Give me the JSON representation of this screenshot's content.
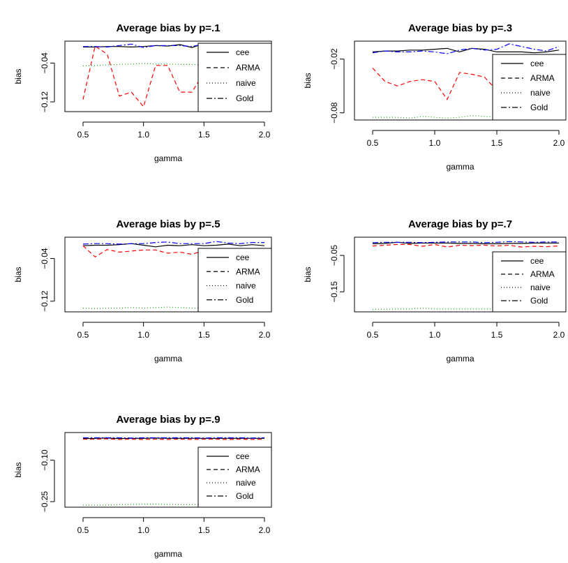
{
  "chart_data": [
    {
      "type": "line",
      "title": "Average bias by p=.1",
      "xlabel": "gamma",
      "ylabel": "bias",
      "xlim": [
        0.5,
        2.0
      ],
      "ylim": [
        -0.14,
        0.005
      ],
      "xticks": [
        0.5,
        1.0,
        1.5,
        2.0
      ],
      "xtick_labels": [
        "0.5",
        "1.0",
        "1.5",
        "2.0"
      ],
      "yticks": [
        -0.04,
        -0.12
      ],
      "ytick_labels": [
        "−0.04",
        "−0.12"
      ],
      "legend_position": "right",
      "x": [
        0.5,
        0.6,
        0.7,
        0.8,
        0.9,
        1.0,
        1.1,
        1.2,
        1.3,
        1.4,
        1.5,
        1.6,
        1.7,
        1.8,
        1.9,
        2.0
      ],
      "series": [
        {
          "name": "cee",
          "color": "#000000",
          "dash": "solid",
          "values": [
            -0.007,
            -0.007,
            -0.006,
            -0.006,
            -0.007,
            -0.006,
            -0.004,
            -0.005,
            -0.002,
            -0.008,
            0.0,
            -0.004,
            -0.003,
            -0.005,
            -0.008,
            -0.005
          ]
        },
        {
          "name": "ARMA",
          "color": "#ff0000",
          "dash": "dashed",
          "values": [
            -0.115,
            -0.005,
            -0.022,
            -0.108,
            -0.1,
            -0.13,
            -0.045,
            -0.045,
            -0.1,
            -0.1,
            -0.06,
            -0.06,
            -0.09,
            -0.07,
            -0.065,
            -0.042
          ]
        },
        {
          "name": "naive",
          "color": "#00aa00",
          "dash": "dotted",
          "values": [
            -0.046,
            -0.045,
            -0.044,
            -0.043,
            -0.042,
            -0.041,
            -0.042,
            -0.042,
            -0.043,
            -0.043,
            -0.044,
            -0.043,
            -0.042,
            -0.042,
            -0.042,
            -0.041
          ]
        },
        {
          "name": "Gold",
          "color": "#0000ff",
          "dash": "dashdot",
          "values": [
            -0.006,
            -0.006,
            -0.007,
            -0.004,
            -0.001,
            -0.008,
            -0.004,
            -0.004,
            -0.004,
            -0.006,
            -0.001,
            -0.003,
            -0.005,
            -0.004,
            -0.006,
            -0.004
          ]
        }
      ]
    },
    {
      "type": "line",
      "title": "Average bias by p=.3",
      "xlabel": "gamma",
      "ylabel": "bias",
      "xlim": [
        0.5,
        2.0
      ],
      "ylim": [
        -0.088,
        0.0
      ],
      "xticks": [
        0.5,
        1.0,
        1.5,
        2.0
      ],
      "xtick_labels": [
        "0.5",
        "1.0",
        "1.5",
        "2.0"
      ],
      "yticks": [
        -0.02,
        -0.08
      ],
      "ytick_labels": [
        "−0.02",
        "−0.08"
      ],
      "legend_position": "right",
      "x": [
        0.5,
        0.6,
        0.7,
        0.8,
        0.9,
        1.0,
        1.1,
        1.2,
        1.3,
        1.4,
        1.5,
        1.6,
        1.7,
        1.8,
        1.9,
        2.0
      ],
      "series": [
        {
          "name": "cee",
          "color": "#000000",
          "dash": "solid",
          "values": [
            -0.012,
            -0.011,
            -0.011,
            -0.01,
            -0.01,
            -0.009,
            -0.008,
            -0.012,
            -0.008,
            -0.009,
            -0.012,
            -0.012,
            -0.012,
            -0.013,
            -0.012,
            -0.01
          ]
        },
        {
          "name": "ARMA",
          "color": "#ff0000",
          "dash": "dashed",
          "values": [
            -0.03,
            -0.045,
            -0.05,
            -0.045,
            -0.043,
            -0.045,
            -0.065,
            -0.035,
            -0.037,
            -0.04,
            -0.055,
            -0.057,
            -0.085,
            -0.04,
            -0.035,
            -0.032
          ]
        },
        {
          "name": "naive",
          "color": "#00aa00",
          "dash": "dotted",
          "values": [
            -0.085,
            -0.085,
            -0.085,
            -0.086,
            -0.084,
            -0.085,
            -0.086,
            -0.085,
            -0.083,
            -0.084,
            -0.085,
            -0.085,
            -0.084,
            -0.085,
            -0.085,
            -0.084
          ]
        },
        {
          "name": "Gold",
          "color": "#0000ff",
          "dash": "dashdot",
          "values": [
            -0.013,
            -0.011,
            -0.012,
            -0.012,
            -0.011,
            -0.012,
            -0.014,
            -0.01,
            -0.008,
            -0.01,
            -0.009,
            -0.003,
            -0.006,
            -0.009,
            -0.011,
            -0.006
          ]
        }
      ]
    },
    {
      "type": "line",
      "title": "Average bias by p=.5",
      "xlabel": "gamma",
      "ylabel": "bias",
      "xlim": [
        0.5,
        2.0
      ],
      "ylim": [
        -0.14,
        0.0
      ],
      "xticks": [
        0.5,
        1.0,
        1.5,
        2.0
      ],
      "xtick_labels": [
        "0.5",
        "1.0",
        "1.5",
        "2.0"
      ],
      "yticks": [
        -0.04,
        -0.12
      ],
      "ytick_labels": [
        "−0.04",
        "−0.12"
      ],
      "legend_position": "right",
      "x": [
        0.5,
        0.6,
        0.7,
        0.8,
        0.9,
        1.0,
        1.1,
        1.2,
        1.3,
        1.4,
        1.5,
        1.6,
        1.7,
        1.8,
        1.9,
        2.0
      ],
      "series": [
        {
          "name": "cee",
          "color": "#000000",
          "dash": "solid",
          "values": [
            -0.016,
            -0.015,
            -0.015,
            -0.014,
            -0.012,
            -0.015,
            -0.018,
            -0.015,
            -0.016,
            -0.014,
            -0.016,
            -0.015,
            -0.013,
            -0.016,
            -0.014,
            -0.016
          ]
        },
        {
          "name": "ARMA",
          "color": "#ff0000",
          "dash": "dashed",
          "values": [
            -0.016,
            -0.037,
            -0.023,
            -0.028,
            -0.026,
            -0.024,
            -0.024,
            -0.03,
            -0.028,
            -0.032,
            -0.025,
            -0.024,
            -0.05,
            -0.022,
            -0.025,
            -0.028
          ]
        },
        {
          "name": "naive",
          "color": "#00aa00",
          "dash": "dotted",
          "values": [
            -0.133,
            -0.134,
            -0.133,
            -0.133,
            -0.132,
            -0.133,
            -0.132,
            -0.131,
            -0.132,
            -0.133,
            -0.133,
            -0.132,
            -0.132,
            -0.132,
            -0.132,
            -0.131
          ]
        },
        {
          "name": "Gold",
          "color": "#0000ff",
          "dash": "dashdot",
          "values": [
            -0.013,
            -0.012,
            -0.012,
            -0.013,
            -0.012,
            -0.012,
            -0.01,
            -0.009,
            -0.012,
            -0.012,
            -0.012,
            -0.008,
            -0.011,
            -0.012,
            -0.01,
            -0.01
          ]
        }
      ]
    },
    {
      "type": "line",
      "title": "Average bias by p=.7",
      "xlabel": "gamma",
      "ylabel": "bias",
      "xlim": [
        0.5,
        2.0
      ],
      "ylim": [
        -0.205,
        0.0
      ],
      "xticks": [
        0.5,
        1.0,
        1.5,
        2.0
      ],
      "xtick_labels": [
        "0.5",
        "1.0",
        "1.5",
        "2.0"
      ],
      "yticks": [
        -0.05,
        -0.15
      ],
      "ytick_labels": [
        "−0.05",
        "−0.15"
      ],
      "legend_position": "right",
      "x": [
        0.5,
        0.6,
        0.7,
        0.8,
        0.9,
        1.0,
        1.1,
        1.2,
        1.3,
        1.4,
        1.5,
        1.6,
        1.7,
        1.8,
        1.9,
        2.0
      ],
      "series": [
        {
          "name": "cee",
          "color": "#000000",
          "dash": "solid",
          "values": [
            -0.018,
            -0.017,
            -0.014,
            -0.017,
            -0.016,
            -0.016,
            -0.016,
            -0.017,
            -0.017,
            -0.018,
            -0.018,
            -0.017,
            -0.017,
            -0.016,
            -0.016,
            -0.016
          ]
        },
        {
          "name": "ARMA",
          "color": "#ff0000",
          "dash": "dashed",
          "values": [
            -0.024,
            -0.022,
            -0.02,
            -0.02,
            -0.025,
            -0.02,
            -0.027,
            -0.022,
            -0.023,
            -0.022,
            -0.024,
            -0.022,
            -0.027,
            -0.025,
            -0.026,
            -0.024
          ]
        },
        {
          "name": "naive",
          "color": "#00aa00",
          "dash": "dotted",
          "values": [
            -0.198,
            -0.198,
            -0.197,
            -0.197,
            -0.195,
            -0.197,
            -0.197,
            -0.197,
            -0.197,
            -0.197,
            -0.197,
            -0.198,
            -0.198,
            -0.198,
            -0.198,
            -0.197
          ]
        },
        {
          "name": "Gold",
          "color": "#0000ff",
          "dash": "dashdot",
          "values": [
            -0.015,
            -0.014,
            -0.014,
            -0.014,
            -0.015,
            -0.014,
            -0.013,
            -0.013,
            -0.013,
            -0.015,
            -0.014,
            -0.012,
            -0.013,
            -0.014,
            -0.013,
            -0.013
          ]
        }
      ]
    },
    {
      "type": "line",
      "title": "Average bias by p=.9",
      "xlabel": "gamma",
      "ylabel": "bias",
      "xlim": [
        0.5,
        2.0
      ],
      "ylim": [
        -0.27,
        0.0
      ],
      "xticks": [
        0.5,
        1.0,
        1.5,
        2.0
      ],
      "xtick_labels": [
        "0.5",
        "1.0",
        "1.5",
        "2.0"
      ],
      "yticks": [
        -0.1,
        -0.25
      ],
      "ytick_labels": [
        "−0.10",
        "−0.25"
      ],
      "legend_position": "right",
      "x": [
        0.5,
        0.6,
        0.7,
        0.8,
        0.9,
        1.0,
        1.1,
        1.2,
        1.3,
        1.4,
        1.5,
        1.6,
        1.7,
        1.8,
        1.9,
        2.0
      ],
      "series": [
        {
          "name": "cee",
          "color": "#000000",
          "dash": "solid",
          "values": [
            -0.022,
            -0.021,
            -0.02,
            -0.022,
            -0.021,
            -0.021,
            -0.02,
            -0.021,
            -0.021,
            -0.021,
            -0.021,
            -0.021,
            -0.021,
            -0.021,
            -0.021,
            -0.021
          ]
        },
        {
          "name": "ARMA",
          "color": "#ff0000",
          "dash": "dashed",
          "values": [
            -0.024,
            -0.024,
            -0.023,
            -0.025,
            -0.024,
            -0.025,
            -0.024,
            -0.025,
            -0.024,
            -0.025,
            -0.024,
            -0.024,
            -0.025,
            -0.024,
            -0.025,
            -0.024
          ]
        },
        {
          "name": "naive",
          "color": "#00aa00",
          "dash": "dotted",
          "values": [
            -0.262,
            -0.263,
            -0.262,
            -0.261,
            -0.26,
            -0.259,
            -0.259,
            -0.26,
            -0.261,
            -0.261,
            -0.26,
            -0.26,
            -0.26,
            -0.26,
            -0.26,
            -0.259
          ]
        },
        {
          "name": "Gold",
          "color": "#0000ff",
          "dash": "dashdot",
          "values": [
            -0.019,
            -0.019,
            -0.019,
            -0.019,
            -0.02,
            -0.019,
            -0.019,
            -0.019,
            -0.019,
            -0.019,
            -0.02,
            -0.019,
            -0.019,
            -0.019,
            -0.02,
            -0.019
          ]
        }
      ]
    }
  ]
}
